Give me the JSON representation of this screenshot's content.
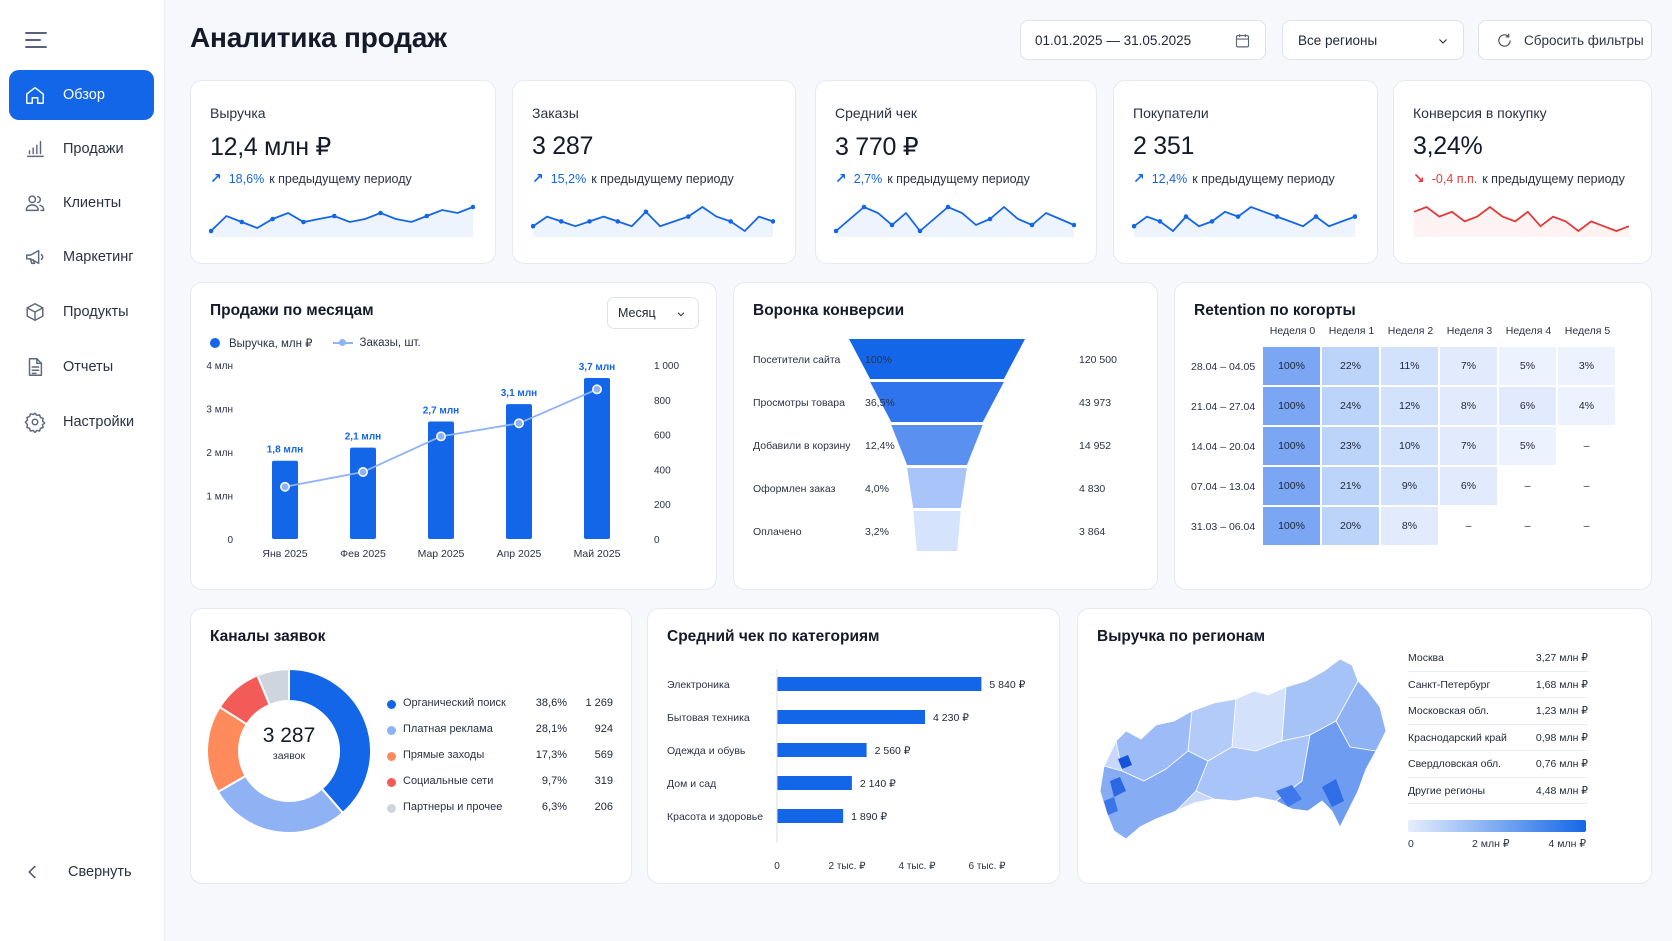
{
  "colors": {
    "accent": "#1466e8",
    "accent_light": "#8fb2f5",
    "negative": "#e5383b",
    "orange": "#ff8a5b",
    "red": "#f25b57",
    "gray": "#cfd5df"
  },
  "sidebar": {
    "items": [
      {
        "label": "Обзор",
        "icon": "home-icon"
      },
      {
        "label": "Продажи",
        "icon": "bar-chart-icon"
      },
      {
        "label": "Клиенты",
        "icon": "users-icon"
      },
      {
        "label": "Маркетинг",
        "icon": "megaphone-icon"
      },
      {
        "label": "Продукты",
        "icon": "box-icon"
      },
      {
        "label": "Отчеты",
        "icon": "document-icon"
      },
      {
        "label": "Настройки",
        "icon": "gear-icon"
      }
    ],
    "collapse_label": "Свернуть"
  },
  "header": {
    "title": "Аналитика продаж",
    "date_range": "01.01.2025 — 31.05.2025",
    "region": "Все регионы",
    "reset_label": "Сбросить фильтры"
  },
  "kpis": [
    {
      "title": "Выручка",
      "value": "12,4 млн ₽",
      "delta": "18,6%",
      "suffix": "к предыдущему периоду",
      "trend": "up",
      "spark": [
        3,
        8,
        6,
        4,
        7,
        9,
        6,
        7,
        8,
        6,
        7,
        9,
        7,
        6,
        8,
        10,
        9,
        11
      ]
    },
    {
      "title": "Заказы",
      "value": "3 287",
      "delta": "15,2%",
      "suffix": "к предыдущему периоду",
      "trend": "up",
      "spark": [
        6,
        8,
        7,
        6,
        7,
        8,
        7,
        6,
        9,
        6,
        7,
        8,
        10,
        8,
        7,
        5,
        8,
        7
      ]
    },
    {
      "title": "Средний чек",
      "value": "3 770 ₽",
      "delta": "2,7%",
      "suffix": "к предыдущему периоду",
      "trend": "up",
      "spark": [
        5,
        7,
        9,
        8,
        6,
        8,
        5,
        7,
        9,
        8,
        6,
        7,
        9,
        7,
        6,
        8,
        7,
        6
      ]
    },
    {
      "title": "Покупатели",
      "value": "2 351",
      "delta": "12,4%",
      "suffix": "к предыдущему периоду",
      "trend": "up",
      "spark": [
        6,
        8,
        7,
        5,
        8,
        6,
        7,
        9,
        8,
        10,
        9,
        8,
        7,
        6,
        8,
        6,
        7,
        8
      ]
    },
    {
      "title": "Конверсия в покупку",
      "value": "3,24%",
      "delta": "-0,4 п.п.",
      "suffix": "к предыдущему периоду",
      "trend": "down",
      "spark": [
        9,
        10,
        8,
        9,
        7,
        8,
        10,
        8,
        7,
        9,
        6,
        8,
        7,
        5,
        7,
        6,
        5,
        6
      ]
    }
  ],
  "monthly": {
    "title": "Продажи по месяцам",
    "period": "Месяц",
    "legend_revenue": "Выручка, млн ₽",
    "legend_orders": "Заказы, шт.",
    "left_ticks": [
      "0",
      "1 млн",
      "2 млн",
      "3 млн",
      "4 млн"
    ],
    "right_ticks": [
      "0",
      "200",
      "400",
      "600",
      "800",
      "1 000"
    ]
  },
  "chart_data": [
    {
      "type": "bar",
      "title": "Продажи по месяцам",
      "categories": [
        "Янв 2025",
        "Фев 2025",
        "Мар 2025",
        "Апр 2025",
        "Май 2025"
      ],
      "series": [
        {
          "name": "Выручка, млн ₽",
          "type": "bar",
          "values": [
            1.8,
            2.1,
            2.7,
            3.1,
            3.7
          ],
          "labels": [
            "1,8 млн",
            "2,1 млн",
            "2,7 млн",
            "3,1 млн",
            "3,7 млн"
          ],
          "axis": "left"
        },
        {
          "name": "Заказы, шт.",
          "type": "line",
          "values": [
            300,
            385,
            590,
            665,
            860
          ],
          "axis": "right"
        }
      ],
      "ylim_left": [
        0,
        4
      ],
      "ylim_right": [
        0,
        1000
      ]
    },
    {
      "type": "bar",
      "title": "Средний чек по категориям",
      "categories": [
        "Электроника",
        "Бытовая техника",
        "Одежда и обувь",
        "Дом и сад",
        "Красота и здоровье"
      ],
      "values": [
        5840,
        4230,
        2560,
        2140,
        1890
      ],
      "labels": [
        "5 840 ₽",
        "4 230 ₽",
        "2 560 ₽",
        "2 140 ₽",
        "1 890 ₽"
      ],
      "ticks": [
        "0",
        "2 тыс. ₽",
        "4 тыс. ₽",
        "6 тыс. ₽"
      ],
      "xlim": [
        0,
        7000
      ]
    },
    {
      "type": "pie",
      "title": "Каналы заявок",
      "center_value": "3 287",
      "center_label": "заявок",
      "slices": [
        {
          "name": "Органический поиск",
          "pct": "38,6%",
          "count": "1 269",
          "value": 38.6,
          "color": "#1466e8"
        },
        {
          "name": "Платная реклама",
          "pct": "28,1%",
          "count": "924",
          "value": 28.1,
          "color": "#8fb2f5"
        },
        {
          "name": "Прямые заходы",
          "pct": "17,3%",
          "count": "569",
          "value": 17.3,
          "color": "#ff8a5b"
        },
        {
          "name": "Социальные сети",
          "pct": "9,7%",
          "count": "319",
          "value": 9.7,
          "color": "#f25b57"
        },
        {
          "name": "Партнеры и прочее",
          "pct": "6,3%",
          "count": "206",
          "value": 6.3,
          "color": "#cfd5df"
        }
      ]
    }
  ],
  "funnel": {
    "title": "Воронка конверсии",
    "stages": [
      {
        "name": "Посетители сайта",
        "pct": "100%",
        "count": "120 500",
        "share": 1.0
      },
      {
        "name": "Просмотры товара",
        "pct": "36,5%",
        "count": "43 973",
        "share": 0.76
      },
      {
        "name": "Добавили в корзину",
        "pct": "12,4%",
        "count": "14 952",
        "share": 0.52
      },
      {
        "name": "Оформлен заказ",
        "pct": "4,0%",
        "count": "4 830",
        "share": 0.34
      },
      {
        "name": "Оплачено",
        "pct": "3,2%",
        "count": "3 864",
        "share": 0.27
      }
    ]
  },
  "retention": {
    "title": "Retention по когорты",
    "weeks": [
      "Неделя 0",
      "Неделя 1",
      "Неделя 2",
      "Неделя 3",
      "Неделя 4",
      "Неделя 5"
    ],
    "rows": [
      {
        "cohort": "28.04 – 04.05",
        "cells": [
          "100%",
          "22%",
          "11%",
          "7%",
          "5%",
          "3%"
        ]
      },
      {
        "cohort": "21.04 – 27.04",
        "cells": [
          "100%",
          "24%",
          "12%",
          "8%",
          "6%",
          "4%"
        ]
      },
      {
        "cohort": "14.04 – 20.04",
        "cells": [
          "100%",
          "23%",
          "10%",
          "7%",
          "5%",
          "–"
        ]
      },
      {
        "cohort": "07.04 – 13.04",
        "cells": [
          "100%",
          "21%",
          "9%",
          "6%",
          "–",
          "–"
        ]
      },
      {
        "cohort": "31.03 – 06.04",
        "cells": [
          "100%",
          "20%",
          "8%",
          "–",
          "–",
          "–"
        ]
      }
    ]
  },
  "regions": {
    "title": "Выручка по регионам",
    "rows": [
      {
        "name": "Москва",
        "value": "3,27 млн ₽"
      },
      {
        "name": "Санкт-Петербург",
        "value": "1,68 млн ₽"
      },
      {
        "name": "Московская обл.",
        "value": "1,23 млн ₽"
      },
      {
        "name": "Краснодарский край",
        "value": "0,98 млн ₽"
      },
      {
        "name": "Свердловская обл.",
        "value": "0,76 млн ₽"
      },
      {
        "name": "Другие регионы",
        "value": "4,48 млн ₽"
      }
    ],
    "scale_ticks": [
      "0",
      "2 млн ₽",
      "4 млн ₽"
    ]
  }
}
